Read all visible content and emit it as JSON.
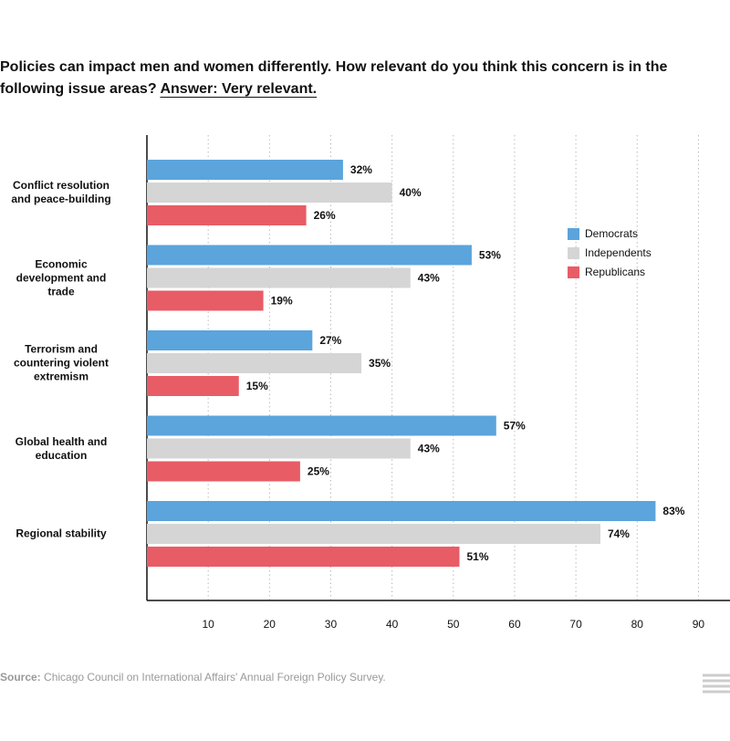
{
  "chart_data": {
    "type": "bar",
    "orientation": "horizontal",
    "title": "Policies can impact men and women differently. How relevant do you think this concern is in the following issue areas?",
    "title_answer": "Answer: Very relevant.",
    "categories": [
      "Conflict resolution\nand peace-building",
      "Economic\ndevelopment and\ntrade",
      "Terrorism and\ncountering violent\nextremism",
      "Global health and\neducation",
      "Regional stability"
    ],
    "series": [
      {
        "name": "Democrats",
        "color": "#5ba4dc",
        "values": [
          32,
          53,
          27,
          57,
          83
        ],
        "value_labels": [
          "32%",
          "53%",
          "27%",
          "57%",
          "83%"
        ]
      },
      {
        "name": "Independents",
        "color": "#d5d5d6",
        "values": [
          40,
          43,
          35,
          43,
          74
        ],
        "value_labels": [
          "40%",
          "43%",
          "35%",
          "43%",
          "74%"
        ]
      },
      {
        "name": "Republicans",
        "color": "#e85c66",
        "values": [
          26,
          19,
          15,
          25,
          51
        ],
        "value_labels": [
          "26%",
          "19%",
          "15%",
          "25%",
          "51%"
        ]
      }
    ],
    "xlim": [
      0,
      95
    ],
    "xticks": [
      10,
      20,
      30,
      40,
      50,
      60,
      70,
      80,
      90
    ],
    "grid": true,
    "legend": "right",
    "source_label": "Source:",
    "source": "Chicago Council on International Affairs' Annual Foreign Policy Survey."
  }
}
